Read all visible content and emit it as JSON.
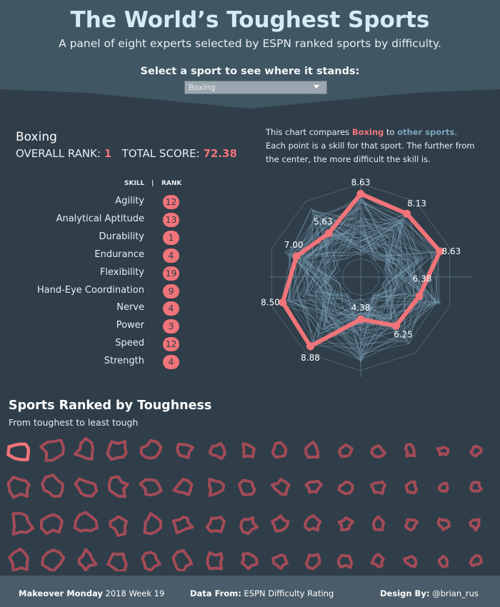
{
  "header": {
    "title": "The World’s Toughest Sports",
    "subtitle": "A panel of eight experts selected by ESPN ranked sports by difficulty.",
    "select_label": "Select a sport to see where it stands:",
    "dropdown_value": "Boxing"
  },
  "selected": {
    "name": "Boxing",
    "overall_rank_label": "OVERALL RANK:",
    "overall_rank": "1",
    "total_score_label": "TOTAL SCORE:",
    "total_score": "72.38",
    "skill_header": "SKILL",
    "divider": "|",
    "rank_header": "RANK"
  },
  "skills": [
    {
      "skill": "Agility",
      "rank": "12"
    },
    {
      "skill": "Analytical Aptitude",
      "rank": "13"
    },
    {
      "skill": "Durability",
      "rank": "1"
    },
    {
      "skill": "Endurance",
      "rank": "4"
    },
    {
      "skill": "Flexibility",
      "rank": "19"
    },
    {
      "skill": "Hand-Eye Coordination",
      "rank": "9"
    },
    {
      "skill": "Nerve",
      "rank": "4"
    },
    {
      "skill": "Power",
      "rank": "3"
    },
    {
      "skill": "Speed",
      "rank": "12"
    },
    {
      "skill": "Strength",
      "rank": "4"
    }
  ],
  "description": {
    "line1_a": "This chart compares ",
    "line1_b": "Boxing",
    "line1_c": " to ",
    "line1_d": "other sports",
    "line1_e": ".",
    "rest": "Each point is a skill for that sport. The further from the center, the more difficult the skill is."
  },
  "colors": {
    "background": "#2f3e49",
    "header_band": "#405663",
    "accent": "#f07479",
    "other_sports": "#7da4bb",
    "mini_shapes": "#a34b57",
    "footer": "#4a5c69"
  },
  "chart_data": [
    {
      "type": "radar",
      "series": [
        {
          "name": "Boxing",
          "values": [
            8.63,
            8.13,
            8.63,
            6.38,
            6.25,
            4.38,
            8.88,
            8.5,
            7.0,
            5.63
          ]
        }
      ],
      "value_labels": [
        "8.63",
        "8.13",
        "8.63",
        "6.38",
        "6.25",
        "4.38",
        "8.88",
        "8.50",
        "7.00",
        "5.63"
      ],
      "background_series": "other sports",
      "ylim": [
        0,
        10
      ]
    },
    {
      "type": "small-multiples",
      "title": "Sports Ranked by Toughness",
      "subtitle": "From toughest to least tough",
      "rows": 4,
      "cols": 15,
      "highlighted_index": 0
    }
  ],
  "footer": {
    "makeover_label": "Makeover Monday",
    "makeover_value": " 2018 Week 19",
    "data_label": "Data From:",
    "data_value": " ESPN Difficulty Rating",
    "design_label": "Design By:",
    "design_value": " @brian_rus"
  }
}
